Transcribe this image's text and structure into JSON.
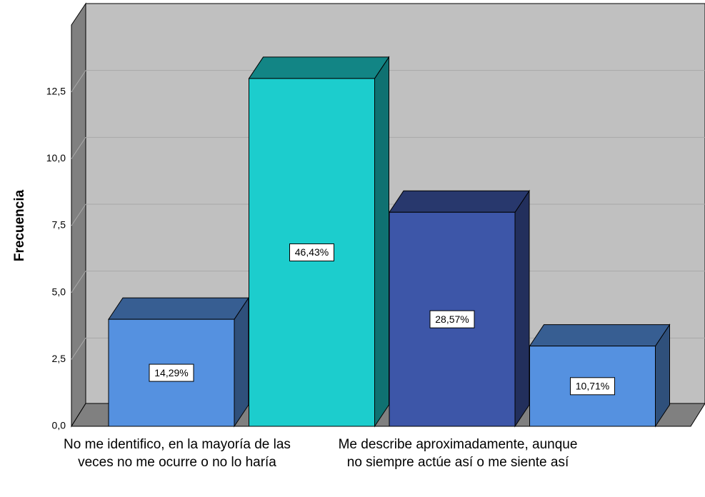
{
  "chart_data": {
    "type": "bar3d",
    "ylabel": "Frecuencia",
    "categories": [
      "No me identifico, en la mayoría de las veces no me ocurre o no lo haría",
      null,
      "Me describe aproximadamente, aunque no siempre actúe así o me siente así",
      null
    ],
    "values": [
      4,
      13,
      8,
      3
    ],
    "percentages": [
      14.29,
      46.43,
      28.57,
      10.71
    ],
    "percentage_labels": [
      "14,29%",
      "46,43%",
      "28,57%",
      "10,71%"
    ],
    "colors": [
      "#5591e0",
      "#1ccdcd",
      "#3d56a8",
      "#5591e0"
    ],
    "ylim": [
      0,
      15
    ],
    "yticks": [
      {
        "value": 0,
        "label": "0,0"
      },
      {
        "value": 2.5,
        "label": "2,5"
      },
      {
        "value": 5,
        "label": "5,0"
      },
      {
        "value": 7.5,
        "label": "7,5"
      },
      {
        "value": 10,
        "label": "10,0"
      },
      {
        "value": 12.5,
        "label": "12,5"
      }
    ],
    "grid": true
  }
}
